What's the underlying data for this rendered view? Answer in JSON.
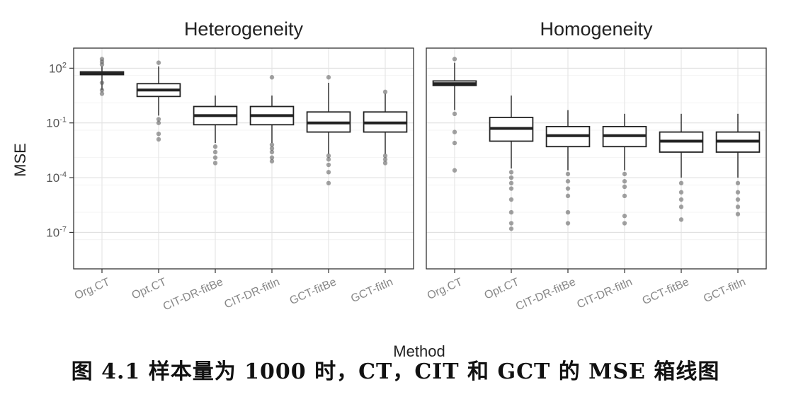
{
  "figure": {
    "caption": "图 4.1   样本量为 1000 时，CT，CIT 和 GCT 的 MSE 箱线图"
  },
  "chart_data": {
    "type": "box",
    "y_scale": "log10",
    "ylabel": "MSE",
    "xlabel": "Method",
    "ylim_log10": [
      -9,
      3.1
    ],
    "y_ticks": [
      {
        "exp": 2,
        "label_base": "10",
        "label_exp": "2"
      },
      {
        "exp": -1,
        "label_base": "10",
        "label_exp": "-1"
      },
      {
        "exp": -4,
        "label_base": "10",
        "label_exp": "-4"
      },
      {
        "exp": -7,
        "label_base": "10",
        "label_exp": "-7"
      }
    ],
    "categories": [
      "Org.CT",
      "Opt.CT",
      "CIT-DR-fitBe",
      "CIT-DR-fitln",
      "GCT-fitBe",
      "GCT-fitln"
    ],
    "grid": true,
    "panels": [
      {
        "title": "Heterogeneity",
        "boxes": [
          {
            "method": "Org.CT",
            "q1": 1.65,
            "median": 1.7,
            "q3": 1.8,
            "whisker_low": 0.8,
            "whisker_high": 2.1,
            "outliers": [
              0.6,
              0.8,
              1.2,
              2.2,
              2.35,
              2.5
            ]
          },
          {
            "method": "Opt.CT",
            "q1": 0.45,
            "median": 0.8,
            "q3": 1.15,
            "whisker_low": -0.6,
            "whisker_high": 2.1,
            "outliers": [
              -0.8,
              -1.0,
              -1.6,
              -1.9,
              2.3
            ]
          },
          {
            "method": "CIT-DR-fitBe",
            "q1": -1.1,
            "median": -0.6,
            "q3": -0.1,
            "whisker_low": -2.1,
            "whisker_high": 0.5,
            "outliers": [
              -2.3,
              -2.6,
              -2.9,
              -3.2
            ]
          },
          {
            "method": "CIT-DR-fitln",
            "q1": -1.1,
            "median": -0.6,
            "q3": -0.1,
            "whisker_low": -2.1,
            "whisker_high": 0.5,
            "outliers": [
              -2.2,
              -2.4,
              -2.6,
              -2.9,
              -3.1,
              1.5
            ]
          },
          {
            "method": "GCT-fitBe",
            "q1": -1.5,
            "median": -1.0,
            "q3": -0.4,
            "whisker_low": -2.7,
            "whisker_high": 1.2,
            "outliers": [
              -2.8,
              -3.0,
              -3.3,
              -3.7,
              -4.3,
              1.5
            ]
          },
          {
            "method": "GCT-fitln",
            "q1": -1.5,
            "median": -1.0,
            "q3": -0.4,
            "whisker_low": -2.7,
            "whisker_high": 0.6,
            "outliers": [
              -2.8,
              -3.0,
              -3.2,
              0.7
            ]
          }
        ]
      },
      {
        "title": "Homogeneity",
        "boxes": [
          {
            "method": "Org.CT",
            "q1": 1.05,
            "median": 1.15,
            "q3": 1.3,
            "whisker_low": -0.3,
            "whisker_high": 2.3,
            "outliers": [
              -0.5,
              -1.5,
              -2.1,
              -3.6,
              2.5
            ]
          },
          {
            "method": "Opt.CT",
            "q1": -2.0,
            "median": -1.3,
            "q3": -0.7,
            "whisker_low": -3.5,
            "whisker_high": 0.5,
            "outliers": [
              -3.7,
              -4.0,
              -4.3,
              -4.6,
              -5.2,
              -5.9,
              -6.5,
              -6.8
            ]
          },
          {
            "method": "CIT-DR-fitBe",
            "q1": -2.3,
            "median": -1.7,
            "q3": -1.2,
            "whisker_low": -3.6,
            "whisker_high": -0.3,
            "outliers": [
              -3.8,
              -4.2,
              -4.6,
              -5.0,
              -5.9,
              -6.5
            ]
          },
          {
            "method": "CIT-DR-fitln",
            "q1": -2.3,
            "median": -1.7,
            "q3": -1.2,
            "whisker_low": -3.6,
            "whisker_high": -0.5,
            "outliers": [
              -3.8,
              -4.2,
              -4.5,
              -5.0,
              -6.1,
              -6.5
            ]
          },
          {
            "method": "GCT-fitBe",
            "q1": -2.6,
            "median": -2.0,
            "q3": -1.5,
            "whisker_low": -4.0,
            "whisker_high": -0.5,
            "outliers": [
              -4.3,
              -4.8,
              -5.2,
              -5.6,
              -6.3
            ]
          },
          {
            "method": "GCT-fitln",
            "q1": -2.6,
            "median": -2.0,
            "q3": -1.5,
            "whisker_low": -4.0,
            "whisker_high": -0.5,
            "outliers": [
              -4.3,
              -4.8,
              -5.2,
              -5.6,
              -6.0
            ]
          }
        ]
      }
    ]
  }
}
